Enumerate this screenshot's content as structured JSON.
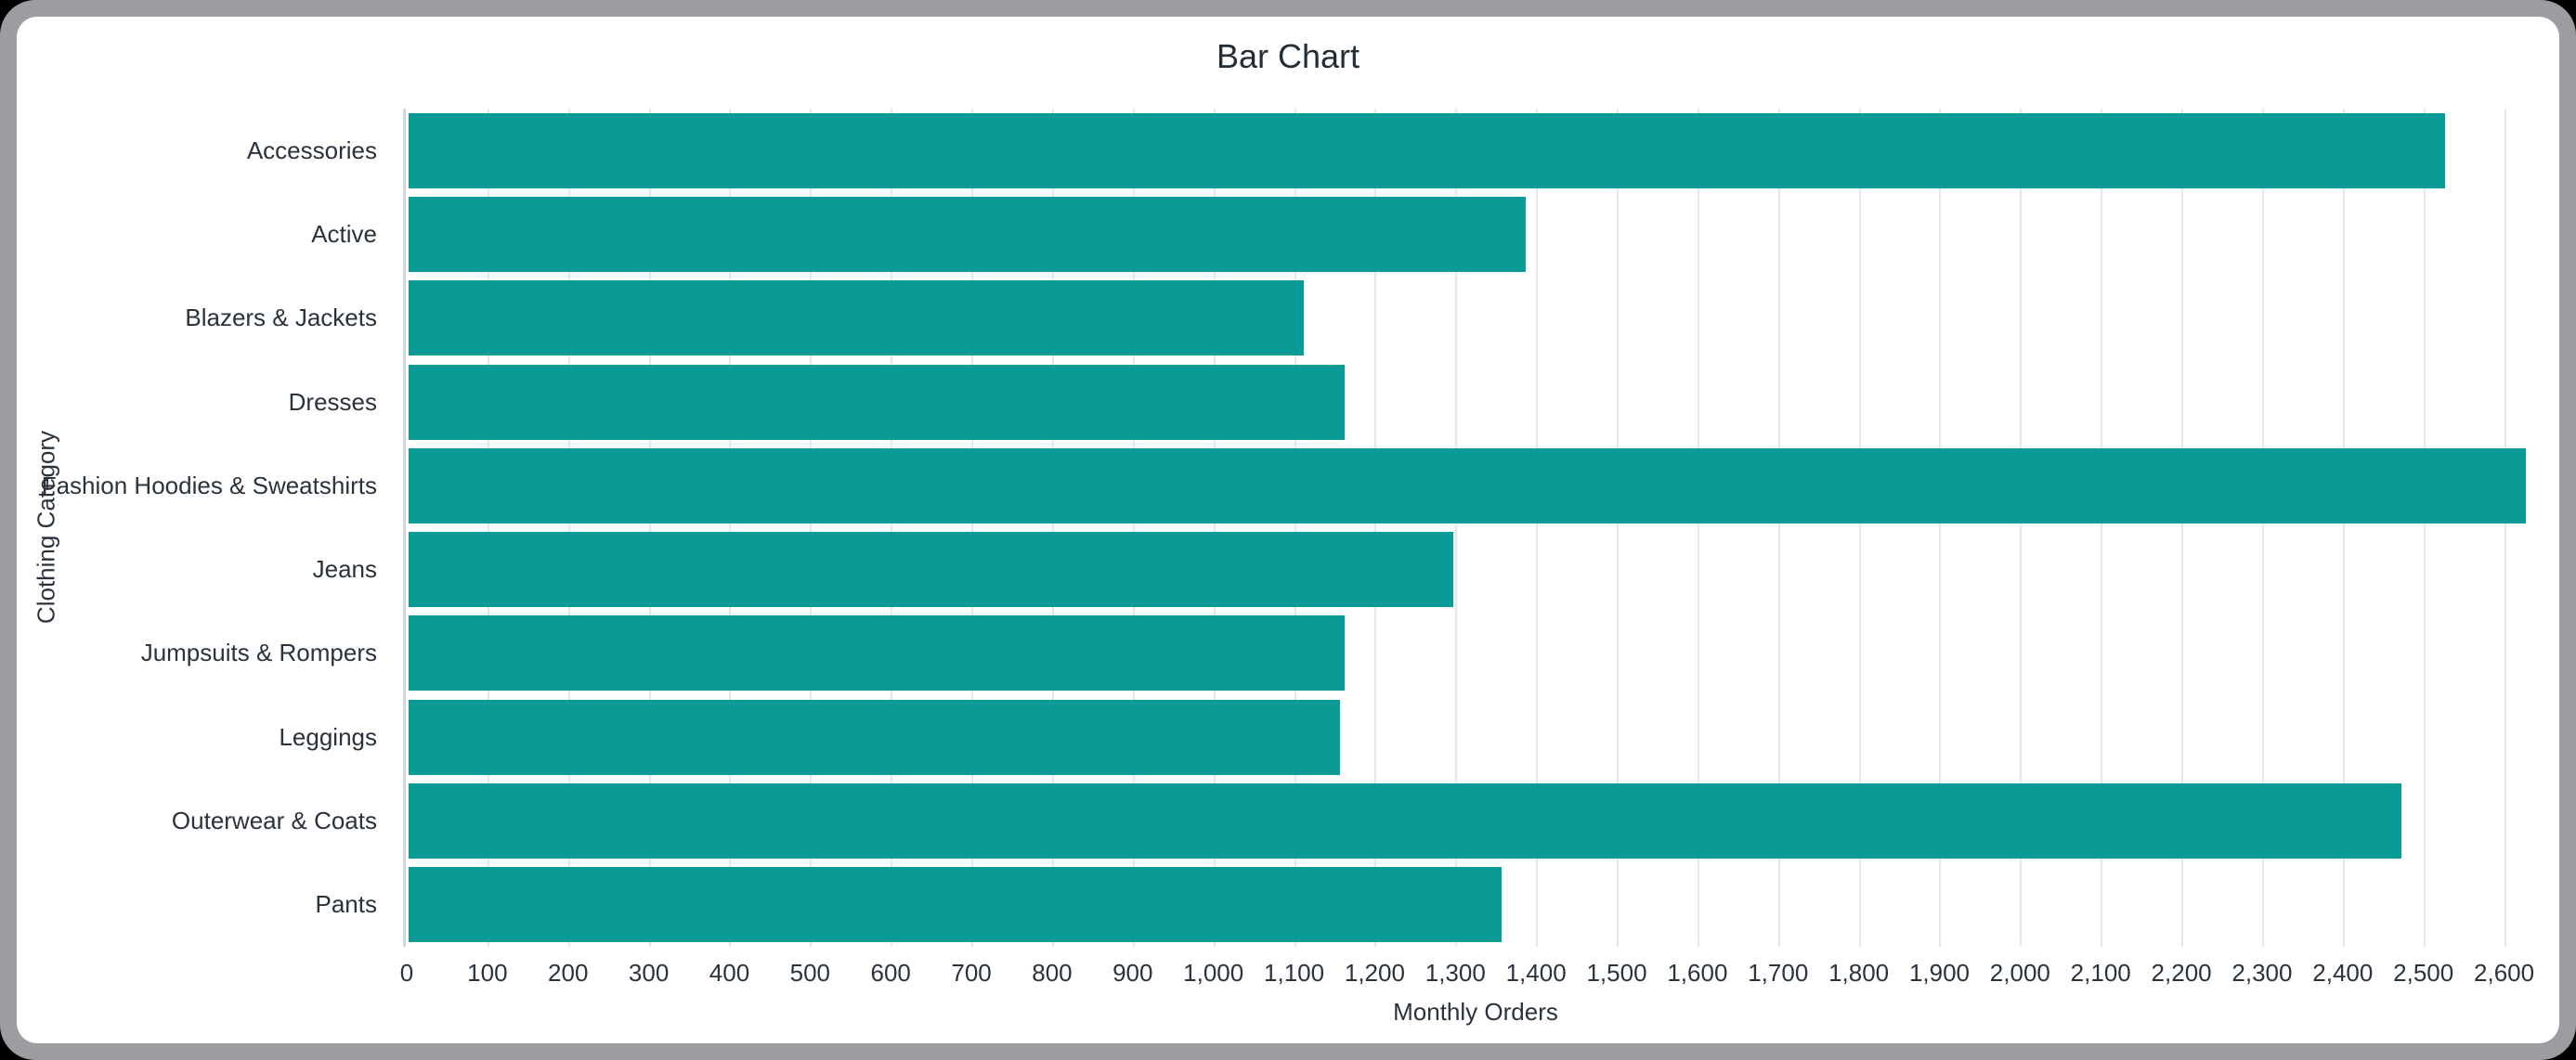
{
  "window": {
    "border_color": "#9d9da1",
    "surface_color": "#ffffff",
    "page_background": "#000000"
  },
  "chart_data": {
    "type": "bar",
    "orientation": "horizontal",
    "title": "Bar Chart",
    "xlabel": "Monthly Orders",
    "ylabel": "Clothing Category",
    "categories": [
      "Accessories",
      "Active",
      "Blazers & Jackets",
      "Dresses",
      "Fashion Hoodies & Sweatshirts",
      "Jeans",
      "Jumpsuits & Rompers",
      "Leggings",
      "Outerwear & Coats",
      "Pants"
    ],
    "values": [
      2525,
      1385,
      1110,
      1160,
      2625,
      1295,
      1160,
      1155,
      2470,
      1355
    ],
    "xlim": [
      0,
      2650
    ],
    "xtick_step": 100,
    "xtick_max": 2600,
    "grid": true,
    "legend": false,
    "colors": {
      "bar": "#0a9b96",
      "grid": "#e5e7e9",
      "axis_line": "#d0d7e2",
      "label_text": "#2a333c",
      "title_text": "#232d36"
    }
  }
}
